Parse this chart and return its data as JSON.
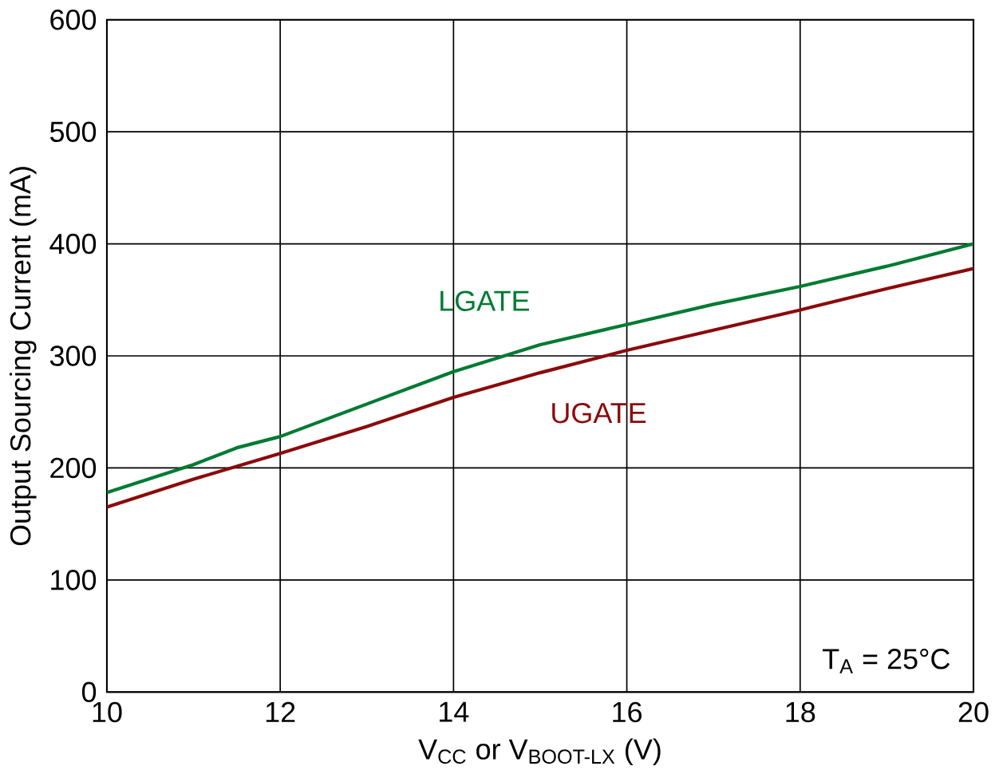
{
  "chart_data": {
    "type": "line",
    "xlabel": "V$_{CC}$ or V$_{BOOT-LX}$ (V)",
    "ylabel": "Output Sourcing Current (mA)",
    "xlim": [
      10,
      20
    ],
    "xticks": [
      10,
      12,
      14,
      16,
      18,
      20
    ],
    "ylim": [
      0,
      600
    ],
    "yticks": [
      0,
      100,
      200,
      300,
      400,
      500,
      600
    ],
    "grid": true,
    "legend": false,
    "series": [
      {
        "name": "LGATE",
        "color": "#007a33",
        "x": [
          10,
          11,
          11.5,
          12,
          13,
          14,
          15,
          16,
          17,
          18,
          19,
          20
        ],
        "values": [
          178,
          203,
          218,
          228,
          257,
          286,
          310,
          328,
          346,
          362,
          380,
          400
        ]
      },
      {
        "name": "UGATE",
        "color": "#8b0a0a",
        "x": [
          10,
          11,
          12,
          13,
          14,
          15,
          16,
          17,
          18,
          19,
          20
        ],
        "values": [
          165,
          190,
          213,
          237,
          263,
          285,
          305,
          323,
          341,
          360,
          378
        ]
      }
    ],
    "annotations": [
      "T$_{A}$ = 25°C"
    ]
  }
}
